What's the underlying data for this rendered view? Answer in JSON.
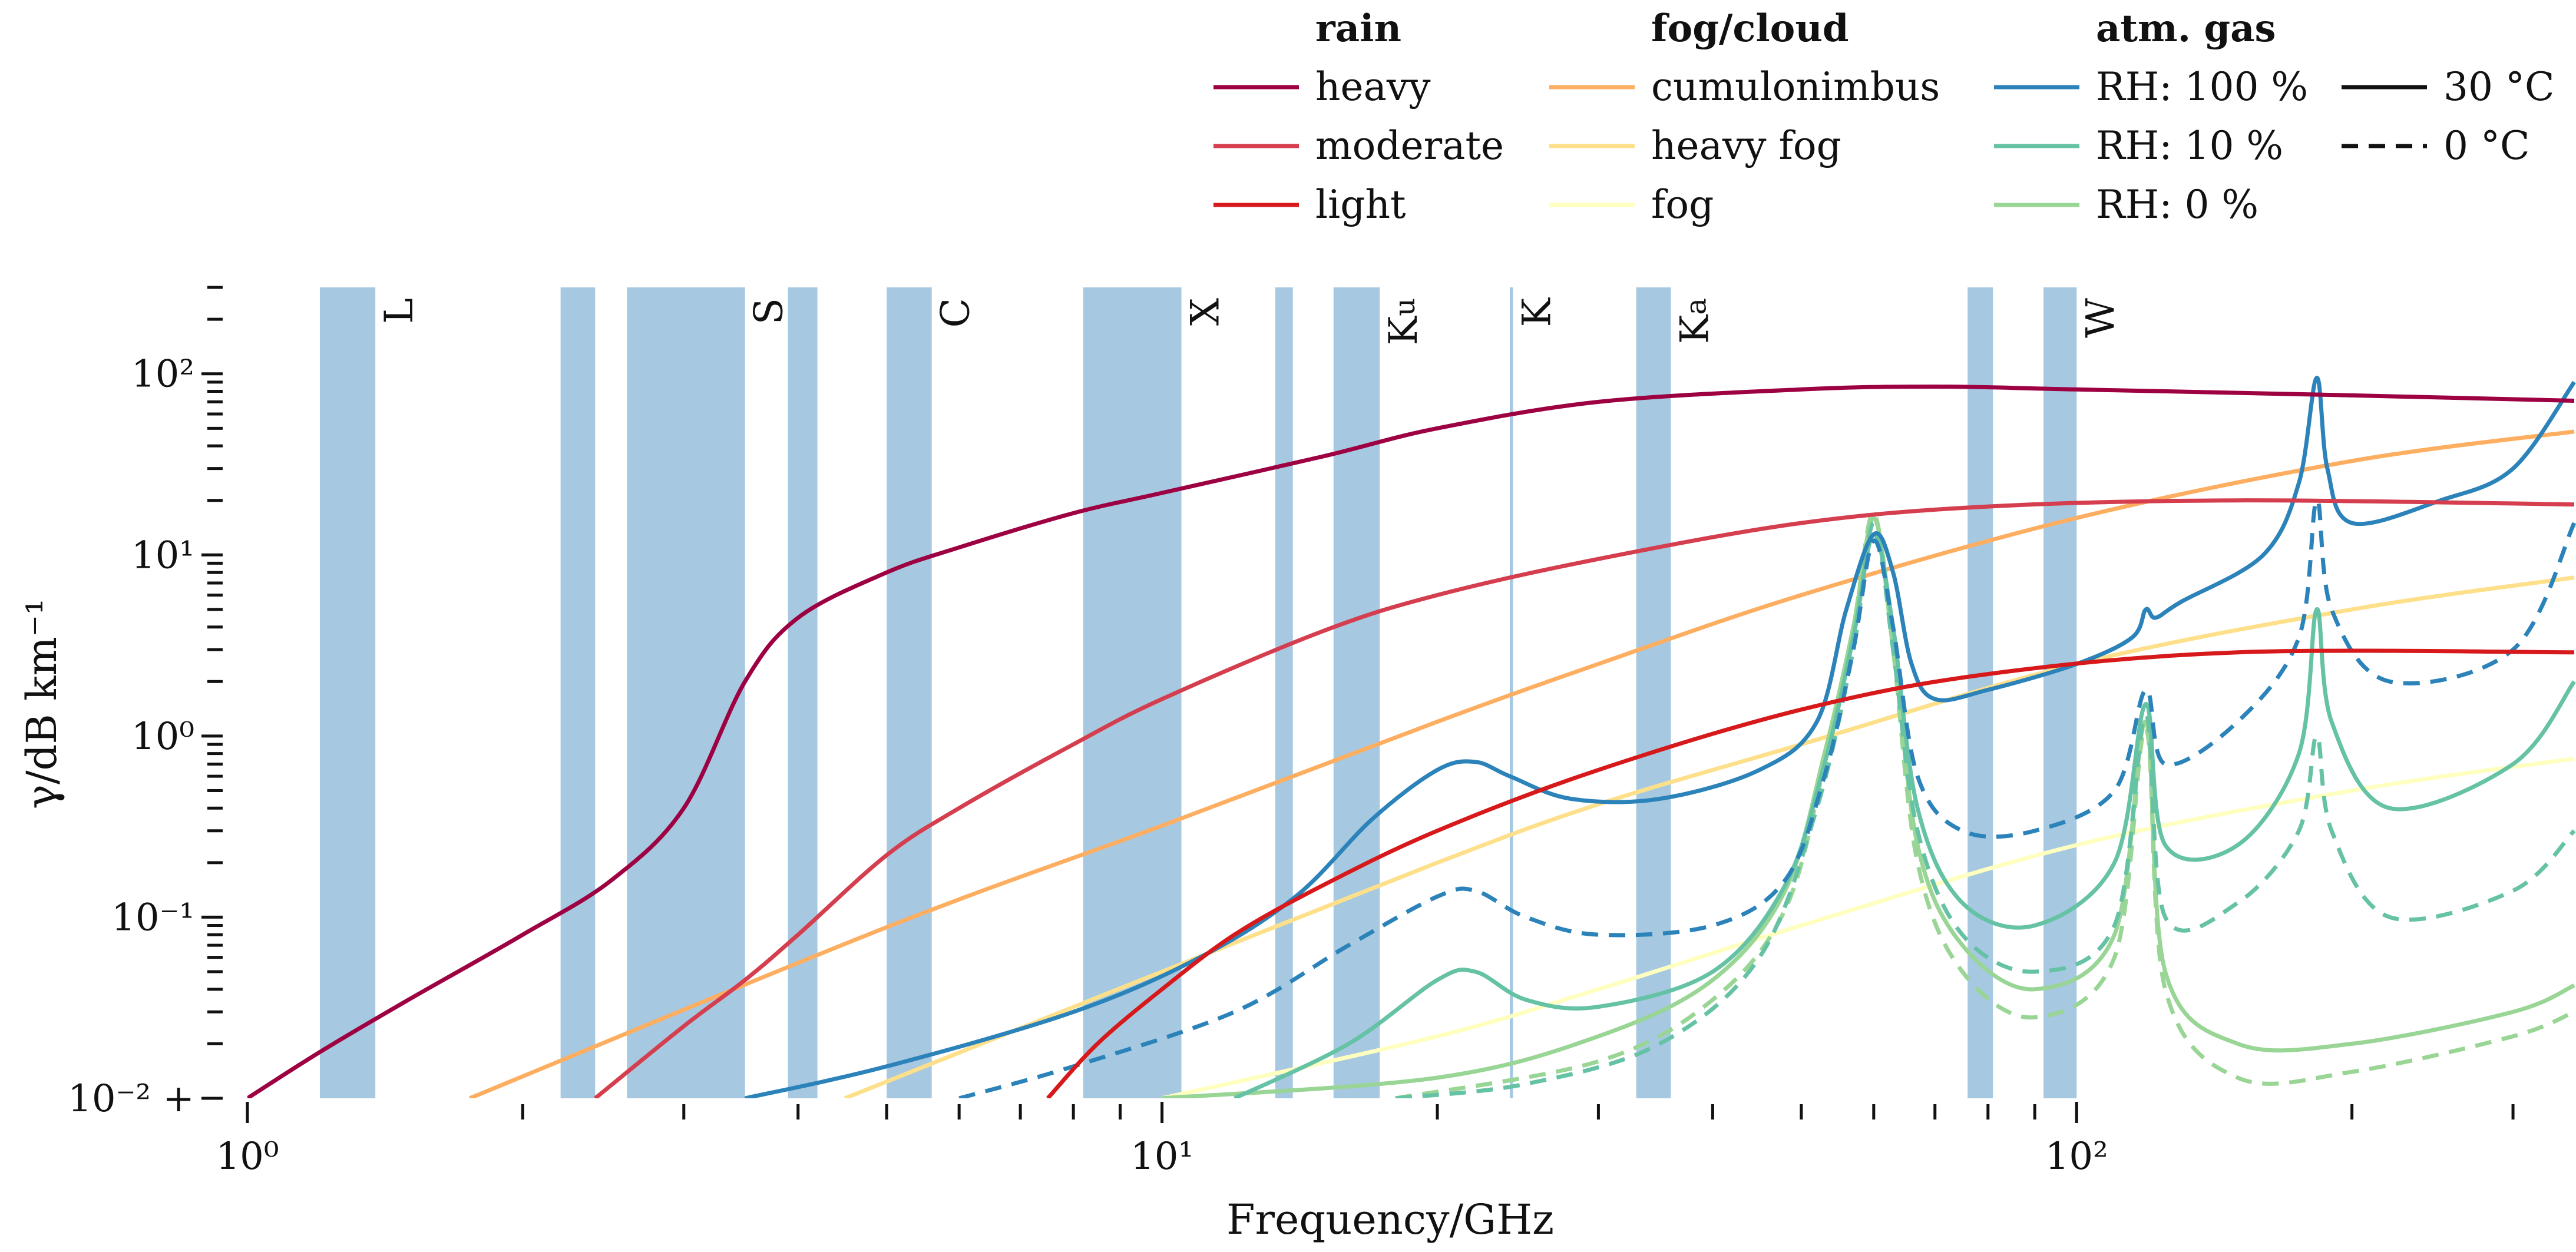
{
  "chart_data": {
    "type": "line",
    "xscale": "log",
    "yscale": "log",
    "xlim": [
      1,
      350
    ],
    "ylim": [
      0.01,
      300
    ],
    "xlabel": "Frequency/GHz",
    "ylabel": "γ/dB km⁻¹",
    "x_ticks": [
      {
        "value": 1,
        "label": "10⁰"
      },
      {
        "value": 10,
        "label": "10¹"
      },
      {
        "value": 100,
        "label": "10²"
      }
    ],
    "y_ticks": [
      {
        "value": 0.01,
        "label": "10⁻² +"
      },
      {
        "value": 0.1,
        "label": "10⁻¹"
      },
      {
        "value": 1,
        "label": "10⁰"
      },
      {
        "value": 10,
        "label": "10¹"
      },
      {
        "value": 100,
        "label": "10²"
      }
    ],
    "band_color": "#a6c8e1",
    "frequency_bands": [
      {
        "label": "L",
        "start": 1.2,
        "end": 1.38
      },
      {
        "label": "",
        "start": 2.2,
        "end": 2.4
      },
      {
        "label": "S",
        "start": 2.6,
        "end": 3.5
      },
      {
        "label": "",
        "start": 3.9,
        "end": 4.2
      },
      {
        "label": "C",
        "start": 5.0,
        "end": 5.6
      },
      {
        "label": "X",
        "start": 8.2,
        "end": 10.5
      },
      {
        "label": "",
        "start": 13.3,
        "end": 13.9
      },
      {
        "label": "Ku",
        "start": 15.4,
        "end": 17.3
      },
      {
        "label": "K",
        "start": 24.0,
        "end": 24.2
      },
      {
        "label": "Ka",
        "start": 33.0,
        "end": 36.0
      },
      {
        "label": "",
        "start": 76.0,
        "end": 81.0
      },
      {
        "label": "W",
        "start": 92.0,
        "end": 100.0
      }
    ],
    "legend": {
      "placement": "top",
      "groups": [
        {
          "title": "rain",
          "entries": [
            "heavy",
            "moderate",
            "light"
          ]
        },
        {
          "title": "fog/cloud",
          "entries": [
            "cumulonimbus",
            "heavy fog",
            "fog"
          ]
        },
        {
          "title": "atm. gas",
          "entries": [
            "RH: 100 %",
            "RH: 10 %",
            "RH: 0 %"
          ]
        },
        {
          "title": "",
          "entries": [
            "30 °C",
            "0 °C"
          ]
        }
      ]
    },
    "series": [
      {
        "name": "rain heavy",
        "group": "rain",
        "color": "#9e0142",
        "dash": "solid",
        "points": [
          [
            1.0,
            0.01
          ],
          [
            1.2,
            0.018
          ],
          [
            1.5,
            0.035
          ],
          [
            2.0,
            0.08
          ],
          [
            2.5,
            0.16
          ],
          [
            3.0,
            0.4
          ],
          [
            3.5,
            2.0
          ],
          [
            4.0,
            4.5
          ],
          [
            5.0,
            8.0
          ],
          [
            6.0,
            11
          ],
          [
            8.0,
            17
          ],
          [
            10.0,
            22
          ],
          [
            15.0,
            35
          ],
          [
            20.0,
            50
          ],
          [
            30.0,
            70
          ],
          [
            50.0,
            82
          ],
          [
            70.0,
            85
          ],
          [
            100.0,
            82
          ],
          [
            200.0,
            76
          ],
          [
            350.0,
            71
          ]
        ]
      },
      {
        "name": "rain moderate",
        "group": "rain",
        "color": "#d53e4f",
        "dash": "solid",
        "points": [
          [
            2.4,
            0.01
          ],
          [
            3.0,
            0.025
          ],
          [
            3.5,
            0.045
          ],
          [
            4.0,
            0.08
          ],
          [
            5.0,
            0.22
          ],
          [
            6.0,
            0.4
          ],
          [
            8.0,
            0.9
          ],
          [
            10.0,
            1.6
          ],
          [
            15.0,
            3.8
          ],
          [
            20.0,
            6.0
          ],
          [
            30.0,
            9.5
          ],
          [
            50.0,
            15
          ],
          [
            80.0,
            18.5
          ],
          [
            150.0,
            20
          ],
          [
            350.0,
            19
          ]
        ]
      },
      {
        "name": "rain light",
        "group": "rain",
        "color": "#d7191c",
        "dash": "solid",
        "points": [
          [
            7.5,
            0.01
          ],
          [
            8.5,
            0.02
          ],
          [
            10.0,
            0.04
          ],
          [
            12.0,
            0.08
          ],
          [
            15.0,
            0.15
          ],
          [
            20.0,
            0.3
          ],
          [
            30.0,
            0.65
          ],
          [
            50.0,
            1.4
          ],
          [
            80.0,
            2.2
          ],
          [
            150.0,
            2.9
          ],
          [
            350.0,
            2.9
          ]
        ]
      },
      {
        "name": "cumulonimbus",
        "group": "fog/cloud",
        "color": "#fdae61",
        "dash": "solid",
        "points": [
          [
            1.75,
            0.01
          ],
          [
            5.0,
            0.088
          ],
          [
            10.0,
            0.32
          ],
          [
            20.0,
            1.2
          ],
          [
            30.0,
            2.5
          ],
          [
            50.0,
            6.0
          ],
          [
            100.0,
            16
          ],
          [
            200.0,
            33
          ],
          [
            350.0,
            48
          ]
        ]
      },
      {
        "name": "heavy fog",
        "group": "fog/cloud",
        "color": "#fee08b",
        "dash": "solid",
        "points": [
          [
            4.5,
            0.01
          ],
          [
            10.0,
            0.05
          ],
          [
            20.0,
            0.2
          ],
          [
            30.0,
            0.42
          ],
          [
            50.0,
            0.9
          ],
          [
            100.0,
            2.5
          ],
          [
            200.0,
            5.0
          ],
          [
            350.0,
            7.5
          ]
        ]
      },
      {
        "name": "fog",
        "group": "fog/cloud",
        "color": "#ffffbf",
        "dash": "solid",
        "points": [
          [
            10.0,
            0.01
          ],
          [
            20.0,
            0.022
          ],
          [
            30.0,
            0.04
          ],
          [
            50.0,
            0.09
          ],
          [
            100.0,
            0.25
          ],
          [
            200.0,
            0.5
          ],
          [
            350.0,
            0.75
          ]
        ]
      },
      {
        "name": "RH: 100 % 30 °C",
        "group": "atm. gas",
        "color": "#2b83ba",
        "dash": "solid",
        "points": [
          [
            3.5,
            0.01
          ],
          [
            5.0,
            0.015
          ],
          [
            8.0,
            0.03
          ],
          [
            11.0,
            0.06
          ],
          [
            14.0,
            0.13
          ],
          [
            17.0,
            0.35
          ],
          [
            20.0,
            0.65
          ],
          [
            22.0,
            0.72
          ],
          [
            24.0,
            0.6
          ],
          [
            28.0,
            0.45
          ],
          [
            35.0,
            0.45
          ],
          [
            45.0,
            0.65
          ],
          [
            52.0,
            1.2
          ],
          [
            56.0,
            5.0
          ],
          [
            60.0,
            13
          ],
          [
            63.0,
            8.0
          ],
          [
            66.0,
            2.5
          ],
          [
            70.0,
            1.6
          ],
          [
            80.0,
            1.8
          ],
          [
            100.0,
            2.5
          ],
          [
            115.0,
            3.5
          ],
          [
            119.0,
            5.0
          ],
          [
            122.0,
            4.5
          ],
          [
            130.0,
            5.5
          ],
          [
            160.0,
            10
          ],
          [
            175.0,
            25
          ],
          [
            183.0,
            95
          ],
          [
            188.0,
            30
          ],
          [
            200.0,
            15
          ],
          [
            250.0,
            20
          ],
          [
            300.0,
            30
          ],
          [
            350.0,
            90
          ]
        ]
      },
      {
        "name": "RH: 100 % 0 °C",
        "group": "atm. gas",
        "color": "#2b83ba",
        "dash": "dashed",
        "points": [
          [
            6.0,
            0.01
          ],
          [
            8.0,
            0.015
          ],
          [
            12.0,
            0.03
          ],
          [
            16.0,
            0.07
          ],
          [
            20.0,
            0.13
          ],
          [
            22.0,
            0.14
          ],
          [
            25.0,
            0.1
          ],
          [
            30.0,
            0.08
          ],
          [
            40.0,
            0.09
          ],
          [
            48.0,
            0.16
          ],
          [
            53.0,
            0.6
          ],
          [
            57.0,
            3.0
          ],
          [
            60.0,
            12
          ],
          [
            63.0,
            4.0
          ],
          [
            67.0,
            0.6
          ],
          [
            75.0,
            0.3
          ],
          [
            90.0,
            0.3
          ],
          [
            110.0,
            0.5
          ],
          [
            119.0,
            1.8
          ],
          [
            125.0,
            0.7
          ],
          [
            150.0,
            1.2
          ],
          [
            175.0,
            3.5
          ],
          [
            183.0,
            20
          ],
          [
            190.0,
            5.0
          ],
          [
            220.0,
            2.0
          ],
          [
            300.0,
            3.0
          ],
          [
            350.0,
            15
          ]
        ]
      },
      {
        "name": "RH: 10 % 30 °C",
        "group": "atm. gas",
        "color": "#66c2a5",
        "dash": "solid",
        "points": [
          [
            12.0,
            0.01
          ],
          [
            16.0,
            0.02
          ],
          [
            20.0,
            0.045
          ],
          [
            22.0,
            0.05
          ],
          [
            25.0,
            0.035
          ],
          [
            30.0,
            0.032
          ],
          [
            40.0,
            0.05
          ],
          [
            48.0,
            0.15
          ],
          [
            53.0,
            0.7
          ],
          [
            57.0,
            3.5
          ],
          [
            60.0,
            13
          ],
          [
            63.0,
            4.0
          ],
          [
            67.0,
            0.4
          ],
          [
            75.0,
            0.12
          ],
          [
            90.0,
            0.09
          ],
          [
            110.0,
            0.2
          ],
          [
            119.0,
            1.5
          ],
          [
            125.0,
            0.25
          ],
          [
            150.0,
            0.25
          ],
          [
            175.0,
            0.8
          ],
          [
            183.0,
            5.0
          ],
          [
            190.0,
            1.2
          ],
          [
            220.0,
            0.4
          ],
          [
            300.0,
            0.7
          ],
          [
            350.0,
            2.0
          ]
        ]
      },
      {
        "name": "RH: 10 % 0 °C",
        "group": "atm. gas",
        "color": "#66c2a5",
        "dash": "dashed",
        "points": [
          [
            18.0,
            0.01
          ],
          [
            25.0,
            0.012
          ],
          [
            35.0,
            0.02
          ],
          [
            45.0,
            0.06
          ],
          [
            52.0,
            0.4
          ],
          [
            57.0,
            3.0
          ],
          [
            60.0,
            15
          ],
          [
            63.0,
            3.0
          ],
          [
            67.0,
            0.3
          ],
          [
            75.0,
            0.08
          ],
          [
            90.0,
            0.05
          ],
          [
            110.0,
            0.09
          ],
          [
            119.0,
            1.3
          ],
          [
            125.0,
            0.1
          ],
          [
            150.0,
            0.12
          ],
          [
            175.0,
            0.3
          ],
          [
            183.0,
            1.0
          ],
          [
            190.0,
            0.3
          ],
          [
            220.0,
            0.1
          ],
          [
            300.0,
            0.14
          ],
          [
            350.0,
            0.3
          ]
        ]
      },
      {
        "name": "RH: 0 % 30 °C",
        "group": "atm. gas",
        "color": "#99d594",
        "dash": "solid",
        "points": [
          [
            10.0,
            0.01
          ],
          [
            20.0,
            0.013
          ],
          [
            30.0,
            0.022
          ],
          [
            40.0,
            0.045
          ],
          [
            48.0,
            0.14
          ],
          [
            53.0,
            0.8
          ],
          [
            57.0,
            4.0
          ],
          [
            60.0,
            16
          ],
          [
            63.0,
            3.5
          ],
          [
            67.0,
            0.25
          ],
          [
            75.0,
            0.07
          ],
          [
            90.0,
            0.04
          ],
          [
            110.0,
            0.08
          ],
          [
            119.0,
            1.2
          ],
          [
            125.0,
            0.05
          ],
          [
            150.0,
            0.02
          ],
          [
            200.0,
            0.02
          ],
          [
            300.0,
            0.03
          ],
          [
            350.0,
            0.042
          ]
        ]
      },
      {
        "name": "RH: 0 % 0 °C",
        "group": "atm. gas",
        "color": "#99d594",
        "dash": "dashed",
        "points": [
          [
            18.0,
            0.01
          ],
          [
            30.0,
            0.016
          ],
          [
            40.0,
            0.035
          ],
          [
            48.0,
            0.11
          ],
          [
            53.0,
            0.7
          ],
          [
            57.0,
            4.0
          ],
          [
            60.0,
            17
          ],
          [
            63.0,
            3.0
          ],
          [
            67.0,
            0.2
          ],
          [
            75.0,
            0.05
          ],
          [
            90.0,
            0.028
          ],
          [
            110.0,
            0.06
          ],
          [
            119.0,
            1.1
          ],
          [
            125.0,
            0.04
          ],
          [
            150.0,
            0.013
          ],
          [
            200.0,
            0.014
          ],
          [
            300.0,
            0.022
          ],
          [
            350.0,
            0.03
          ]
        ]
      }
    ]
  }
}
